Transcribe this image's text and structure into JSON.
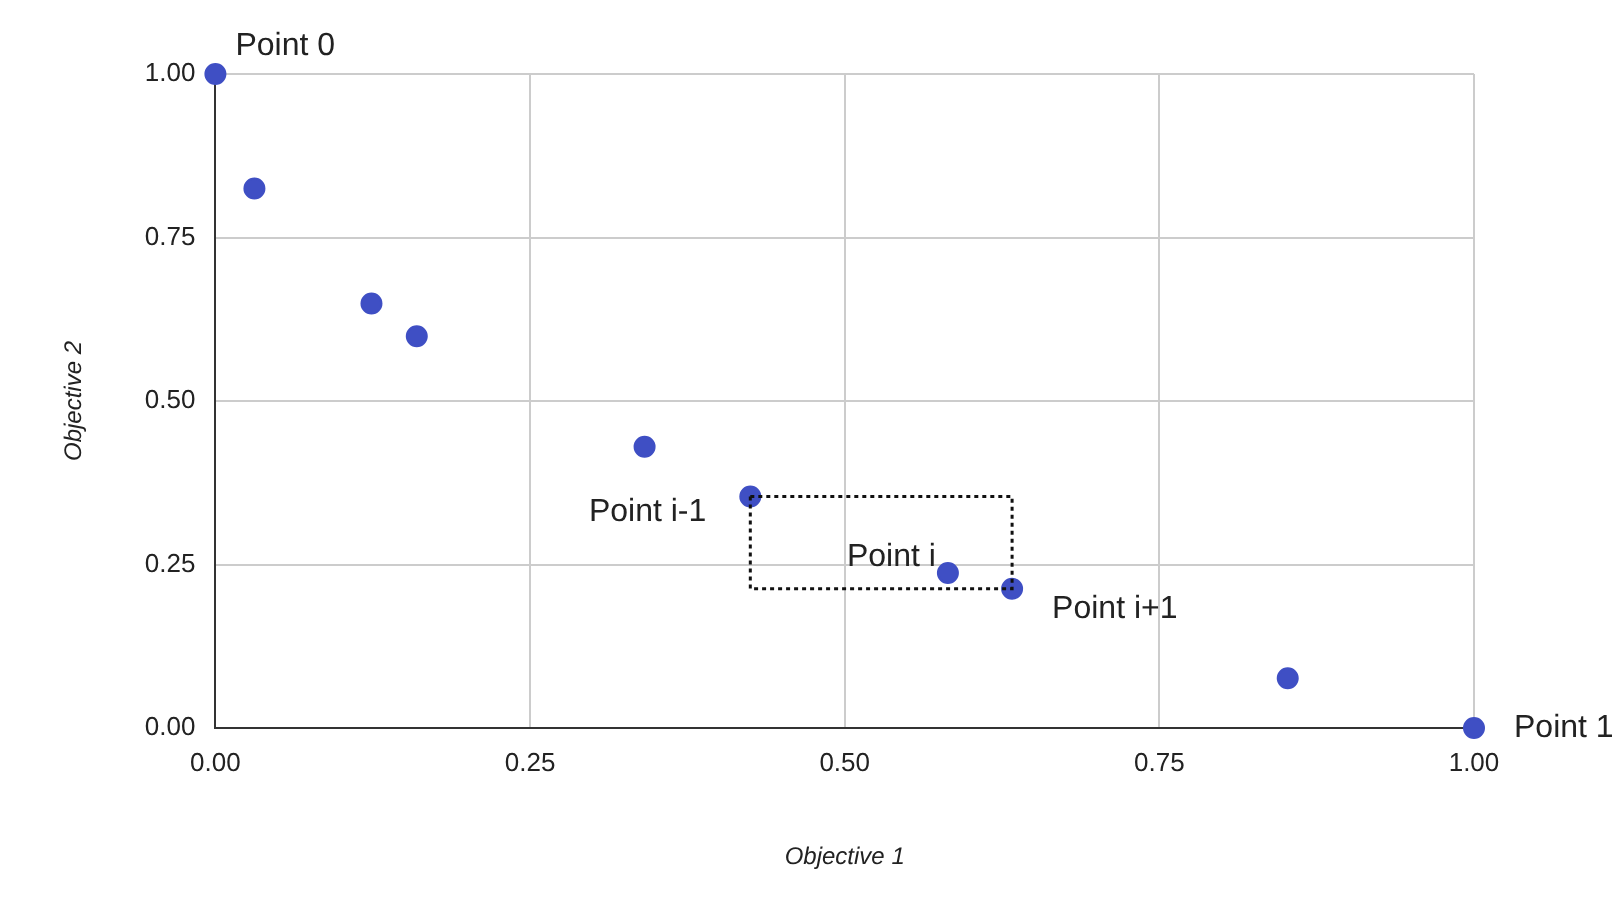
{
  "chart_data": {
    "type": "scatter",
    "xlabel": "Objective 1",
    "ylabel": "Objective 2",
    "x": [
      0,
      0.031,
      0.124,
      0.16,
      0.341,
      0.425,
      0.582,
      0.633,
      0.852,
      1
    ],
    "series": [
      {
        "color": "#3f4fc4",
        "values": [
          1,
          0.825,
          0.649,
          0.599,
          0.43,
          0.354,
          0.237,
          0.213,
          0.076,
          0
        ]
      }
    ],
    "xlim": [
      0,
      1
    ],
    "ylim": [
      0,
      1
    ],
    "xticks": [
      {
        "value": 0,
        "label": "0.00"
      },
      {
        "value": 0.25,
        "label": "0.25"
      },
      {
        "value": 0.5,
        "label": "0.50"
      },
      {
        "value": 0.75,
        "label": "0.75"
      },
      {
        "value": 1,
        "label": "1.00"
      }
    ],
    "yticks": [
      {
        "value": 0,
        "label": "0.00"
      },
      {
        "value": 0.25,
        "label": "0.25"
      },
      {
        "value": 0.5,
        "label": "0.50"
      },
      {
        "value": 0.75,
        "label": "0.75"
      },
      {
        "value": 1,
        "label": "1.00"
      }
    ],
    "grid": true,
    "legend": false,
    "marker": "circle",
    "annotations": [
      {
        "text": "Point 0",
        "x": 0,
        "y": 1
      },
      {
        "text": "Point i-1",
        "x": 0.425,
        "y": 0.354
      },
      {
        "text": "Point i",
        "x": 0.582,
        "y": 0.237
      },
      {
        "text": "Point i+1",
        "x": 0.633,
        "y": 0.213
      },
      {
        "text": "Point 1",
        "x": 1,
        "y": 0
      }
    ]
  }
}
